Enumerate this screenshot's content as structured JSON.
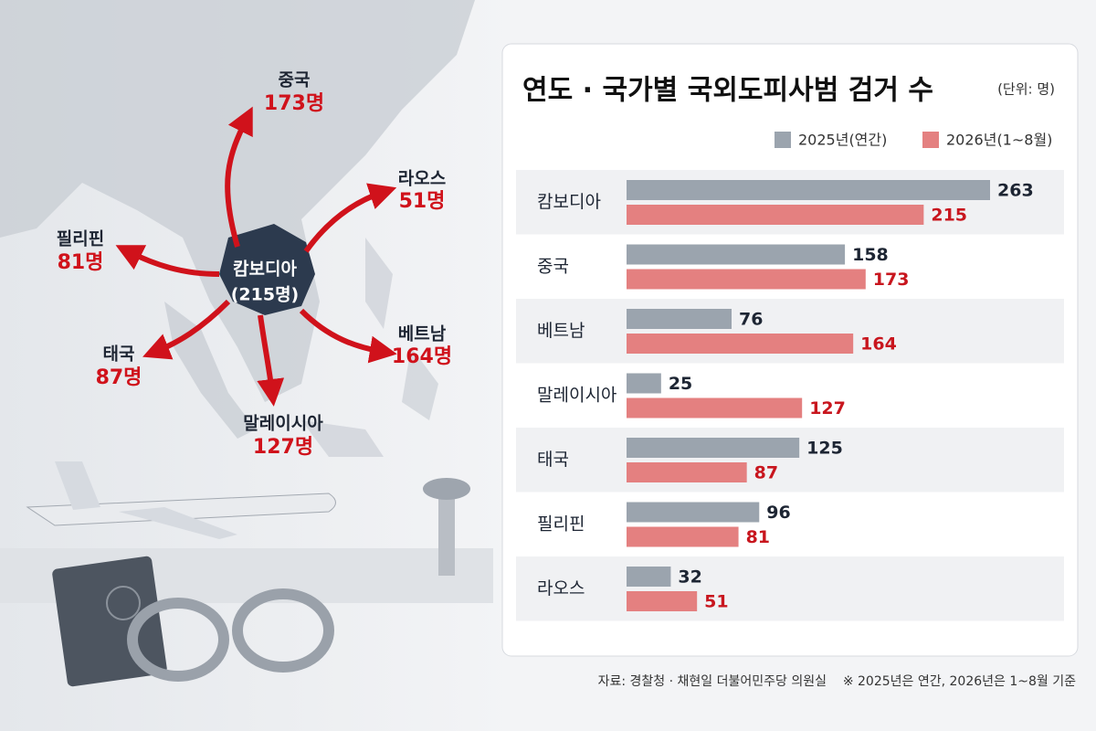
{
  "map": {
    "center": {
      "name": "캄보디아",
      "count": "(215명)"
    },
    "destinations": [
      {
        "name": "중국",
        "count": "173명"
      },
      {
        "name": "라오스",
        "count": "51명"
      },
      {
        "name": "필리핀",
        "count": "81명"
      },
      {
        "name": "태국",
        "count": "87명"
      },
      {
        "name": "말레이시아",
        "count": "127명"
      },
      {
        "name": "베트남",
        "count": "164명"
      }
    ]
  },
  "chart_data": {
    "type": "bar",
    "orientation": "horizontal",
    "title": "연도 · 국가별 국외도피사범 검거 수",
    "unit": "(단위: 명)",
    "categories": [
      "캄보디아",
      "중국",
      "베트남",
      "말레이시아",
      "태국",
      "필리핀",
      "라오스"
    ],
    "series": [
      {
        "name": "2025년(연간)",
        "color": "#9ba4ae",
        "label_color": "#1d2533",
        "values": [
          263,
          158,
          76,
          25,
          125,
          96,
          32
        ]
      },
      {
        "name": "2026년(1~8월)",
        "color": "#e48080",
        "label_color": "#c8161e",
        "values": [
          215,
          173,
          164,
          127,
          87,
          81,
          51
        ]
      }
    ]
  },
  "footer": {
    "source": "자료: 경찰청 · 채현일 더불어민주당 의원실",
    "note": "※ 2025년은 연간, 2026년은 1~8월 기준"
  }
}
